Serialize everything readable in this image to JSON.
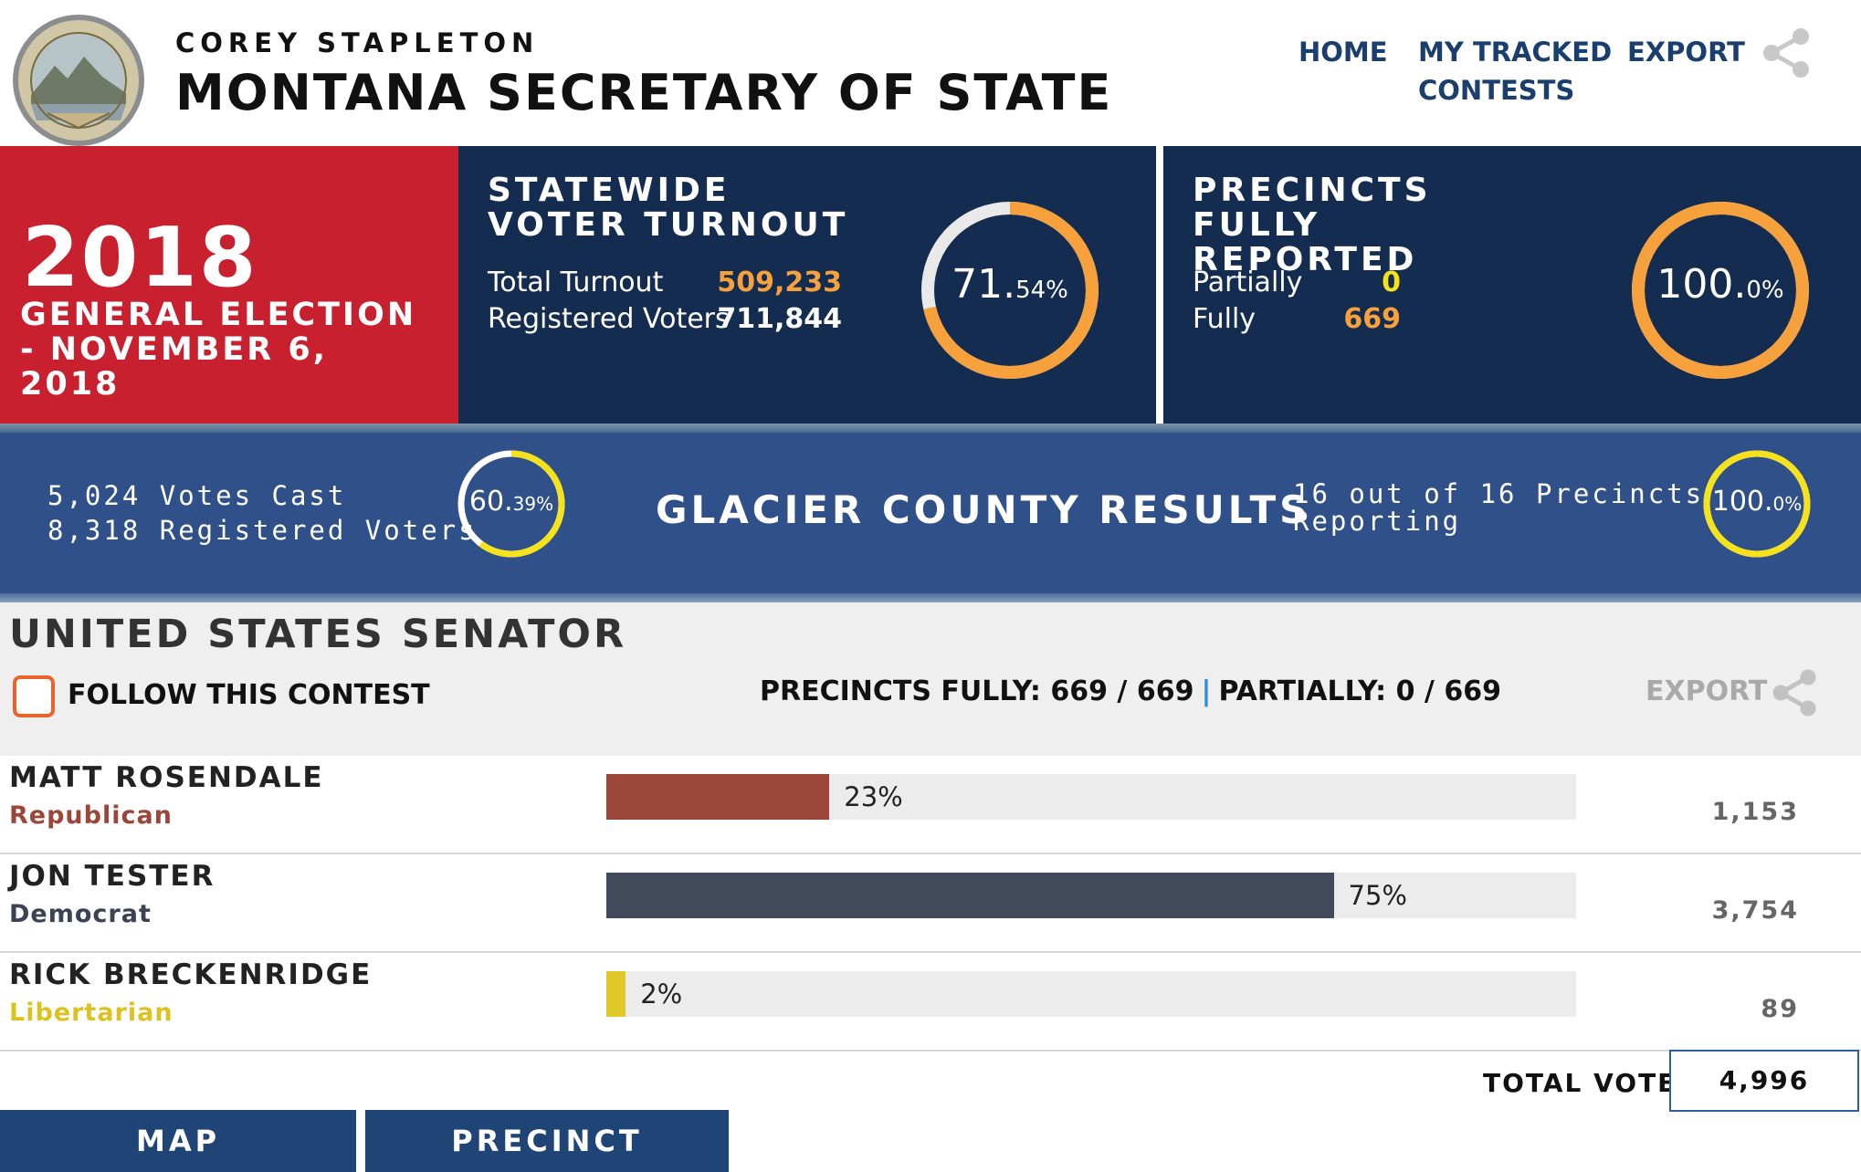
{
  "header": {
    "secretary_name": "COREY STAPLETON",
    "office_title": "MONTANA SECRETARY OF STATE",
    "nav": {
      "home": "HOME",
      "tracked_line1": "MY TRACKED",
      "tracked_line2": "CONTESTS",
      "export": "EXPORT"
    },
    "icons": {
      "seal": "montana-state-seal",
      "share": "share-icon"
    }
  },
  "election": {
    "year": "2018",
    "name": "GENERAL ELECTION - NOVEMBER 6, 2018",
    "color": "#c8202f"
  },
  "turnout": {
    "title": "STATEWIDE VOTER TURNOUT",
    "total_label": "Total Turnout",
    "total_value": "509,233",
    "registered_label": "Registered Voters",
    "registered_value": "711,844",
    "percent_main": "71.",
    "percent_decimal": "54%",
    "percent": 71.54
  },
  "precincts": {
    "title": "PRECINCTS FULLY REPORTED",
    "partially_label": "Partially",
    "partially_value": "0",
    "fully_label": "Fully",
    "fully_value": "669",
    "percent_main": "100.",
    "percent_decimal": "0%",
    "percent": 100.0
  },
  "county": {
    "votes_cast": "5,024 Votes Cast",
    "registered": "8,318 Registered Voters",
    "turnout_main": "60.",
    "turnout_decimal": "39%",
    "turnout_percent": 60.39,
    "title": "GLACIER COUNTY RESULTS",
    "precincts_line1": "16 out of 16 Precincts",
    "precincts_line2": "Reporting",
    "precincts_main": "100.",
    "precincts_decimal": "0%",
    "precincts_percent": 100.0
  },
  "contest": {
    "title": "UNITED STATES SENATOR",
    "follow_label": "FOLLOW THIS CONTEST",
    "precincts_fully": "PRECINCTS FULLY: 669 / 669",
    "separator": "|",
    "precincts_partially": "PARTIALLY: 0 / 669",
    "export": "EXPORT",
    "candidates": [
      {
        "name": "MATT ROSENDALE",
        "party": "Republican",
        "percent_label": "23%",
        "percent": 23,
        "votes": "1,153",
        "color": "#9b4639",
        "party_color": "#9b4639"
      },
      {
        "name": "JON TESTER",
        "party": "Democrat",
        "percent_label": "75%",
        "percent": 75,
        "votes": "3,754",
        "color": "#414a5a",
        "party_color": "#3b4253"
      },
      {
        "name": "RICK BRECKENRIDGE",
        "party": "Libertarian",
        "percent_label": "2%",
        "percent": 2,
        "votes": "89",
        "color": "#e2c92a",
        "party_color": "#dcc21f"
      }
    ],
    "total_label": "TOTAL VOTES",
    "total_value": "4,996"
  },
  "tabs": {
    "map": "MAP",
    "precinct_results": "PRECINCT RESULTS"
  },
  "colors": {
    "navy": "#142c4f",
    "accent_orange": "#f6a13c",
    "accent_yellow": "#f6e21a",
    "county_blue": "#30508a"
  }
}
